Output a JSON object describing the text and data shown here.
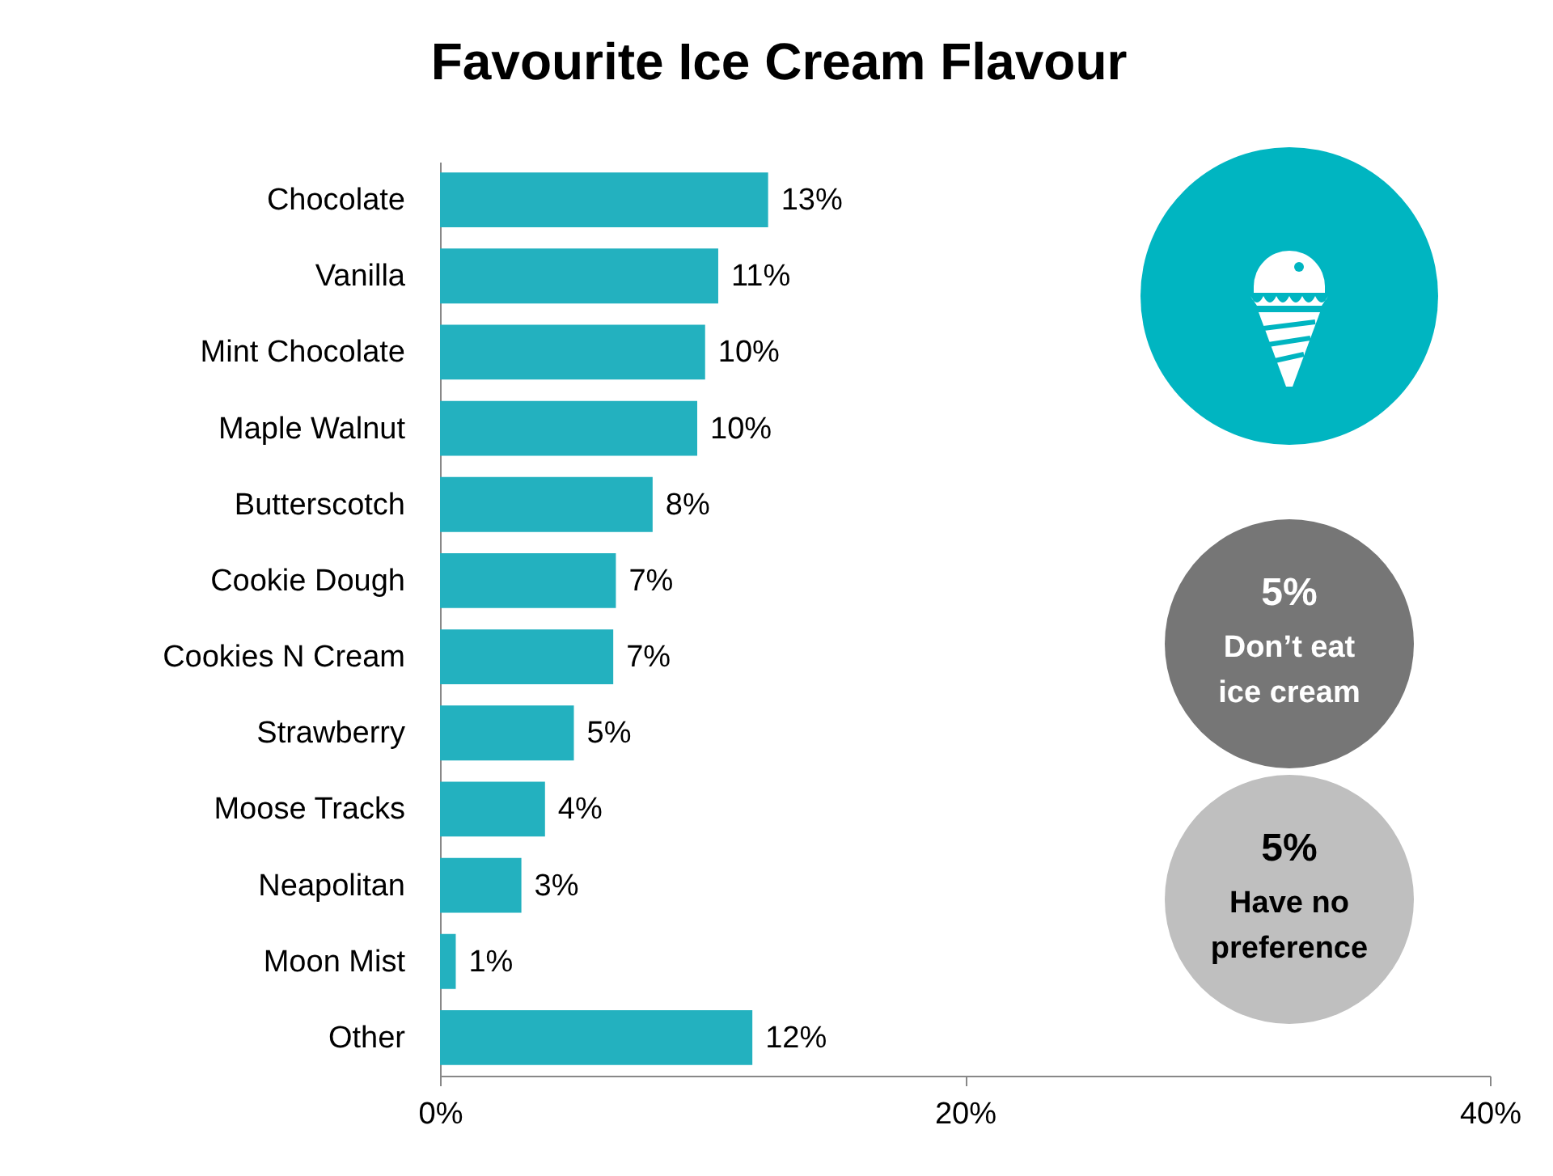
{
  "chart_data": {
    "type": "bar",
    "orientation": "horizontal",
    "title": "Favourite Ice Cream Flavour",
    "categories": [
      "Chocolate",
      "Vanilla",
      "Mint Chocolate",
      "Maple Walnut",
      "Butterscotch",
      "Cookie Dough",
      "Cookies N Cream",
      "Strawberry",
      "Moose Tracks",
      "Neapolitan",
      "Moon Mist",
      "Other"
    ],
    "values": [
      12.5,
      10.6,
      10.1,
      9.8,
      8.1,
      6.7,
      6.6,
      5.1,
      4.0,
      3.1,
      0.6,
      11.9
    ],
    "value_labels": [
      "13%",
      "11%",
      "10%",
      "10%",
      "8%",
      "7%",
      "7%",
      "5%",
      "4%",
      "3%",
      "1%",
      "12%"
    ],
    "color": "#23b1bf",
    "xlim": [
      0,
      40
    ],
    "xticks": [
      {
        "value": 0,
        "label": "0%"
      },
      {
        "value": 20,
        "label": "20%"
      },
      {
        "value": 40,
        "label": "40%"
      }
    ],
    "grid": false,
    "annotations": [
      "5%",
      "Don’t eat\nice cream",
      "5%",
      "Have no\npreference"
    ]
  }
}
